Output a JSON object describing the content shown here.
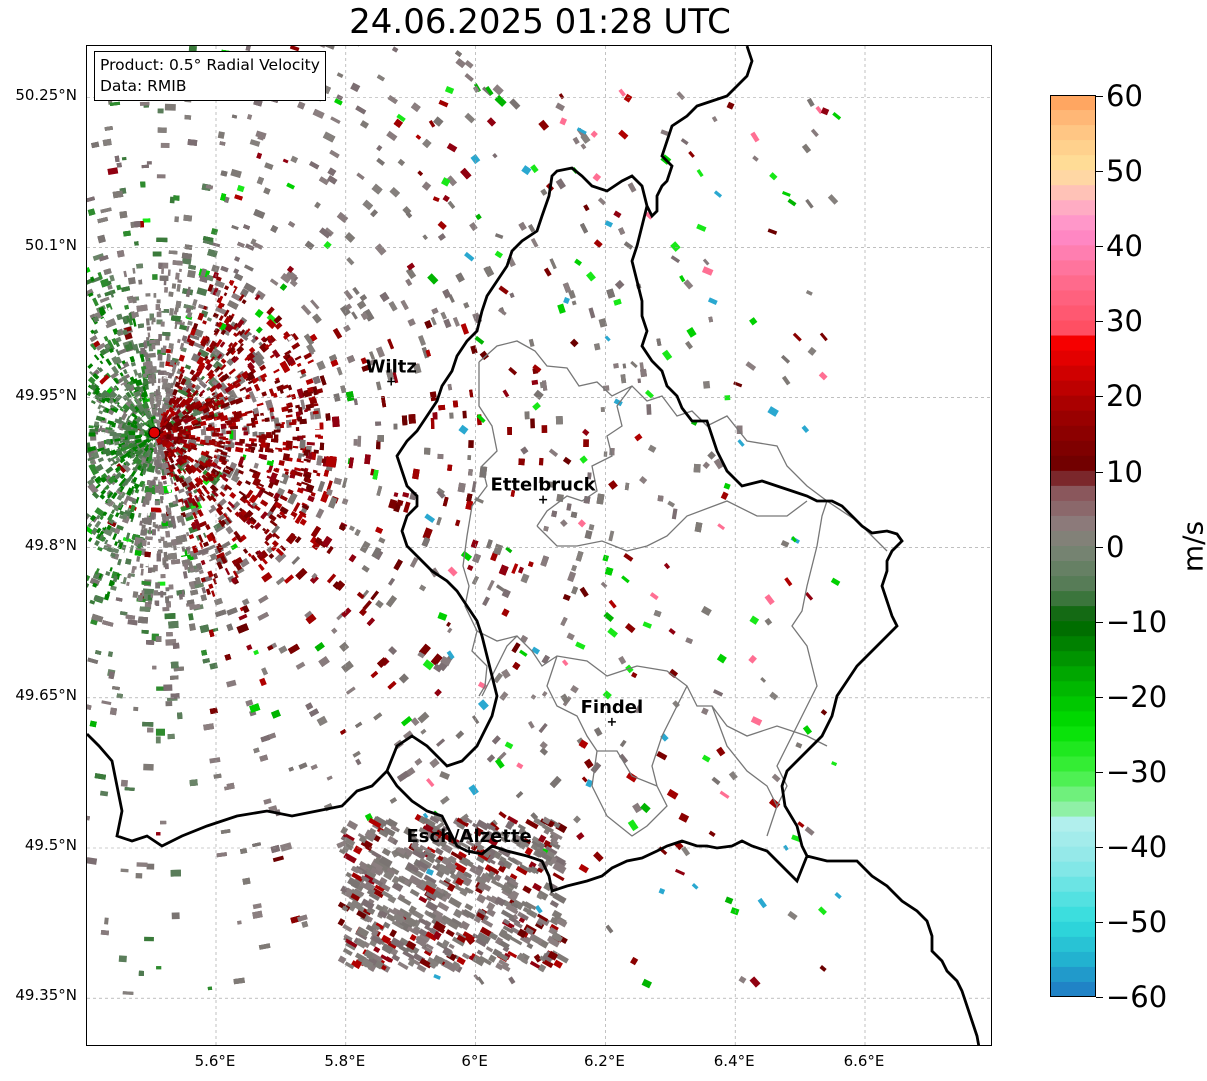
{
  "title": "24.06.2025 01:28 UTC",
  "info": {
    "product": "Product: 0.5° Radial Velocity",
    "data": "Data: RMIB"
  },
  "lat_ticks": [
    "50.25°N",
    "50.1°N",
    "49.95°N",
    "49.8°N",
    "49.65°N",
    "49.5°N",
    "49.35°N"
  ],
  "lon_ticks": [
    "5.6°E",
    "5.8°E",
    "6°E",
    "6.2°E",
    "6.4°E",
    "6.6°E"
  ],
  "cities": [
    {
      "name": "Wiltz",
      "lon": 5.87,
      "lat": 49.966
    },
    {
      "name": "Ettelbruck",
      "lon": 6.104,
      "lat": 49.848
    },
    {
      "name": "Findel",
      "lon": 6.21,
      "lat": 49.626
    },
    {
      "name": "Esch/Alzette",
      "lon": 5.99,
      "lat": 49.497
    }
  ],
  "radar_site": {
    "lon": 5.505,
    "lat": 49.915
  },
  "colorbar": {
    "label": "m/s",
    "min": -60,
    "max": 60,
    "ticks": [
      "60",
      "50",
      "40",
      "30",
      "20",
      "10",
      "0",
      "−10",
      "−20",
      "−30",
      "−40",
      "−50",
      "−60"
    ],
    "stops": [
      {
        "v": -60,
        "c": "#1f77c4"
      },
      {
        "v": -55,
        "c": "#22b2d0"
      },
      {
        "v": -50,
        "c": "#30dcdc"
      },
      {
        "v": -42,
        "c": "#8ee8e8"
      },
      {
        "v": -36,
        "c": "#b8f0ee"
      },
      {
        "v": -35,
        "c": "#8ff0a6"
      },
      {
        "v": -30,
        "c": "#3ef03e"
      },
      {
        "v": -24,
        "c": "#00e000"
      },
      {
        "v": -18,
        "c": "#00b000"
      },
      {
        "v": -10,
        "c": "#006400"
      },
      {
        "v": -6,
        "c": "#4f7a50"
      },
      {
        "v": 0,
        "c": "#7d8577"
      },
      {
        "v": 3,
        "c": "#8c7a7a"
      },
      {
        "v": 8,
        "c": "#8a4e55"
      },
      {
        "v": 10,
        "c": "#6b0000"
      },
      {
        "v": 18,
        "c": "#a00000"
      },
      {
        "v": 28,
        "c": "#ff0000"
      },
      {
        "v": 29,
        "c": "#ff4f63"
      },
      {
        "v": 36,
        "c": "#ff6f93"
      },
      {
        "v": 42,
        "c": "#ff8ccc"
      },
      {
        "v": 46,
        "c": "#ffb7c0"
      },
      {
        "v": 50,
        "c": "#ffe29a"
      },
      {
        "v": 56,
        "c": "#ffc080"
      },
      {
        "v": 60,
        "c": "#ff9d57"
      }
    ]
  }
}
